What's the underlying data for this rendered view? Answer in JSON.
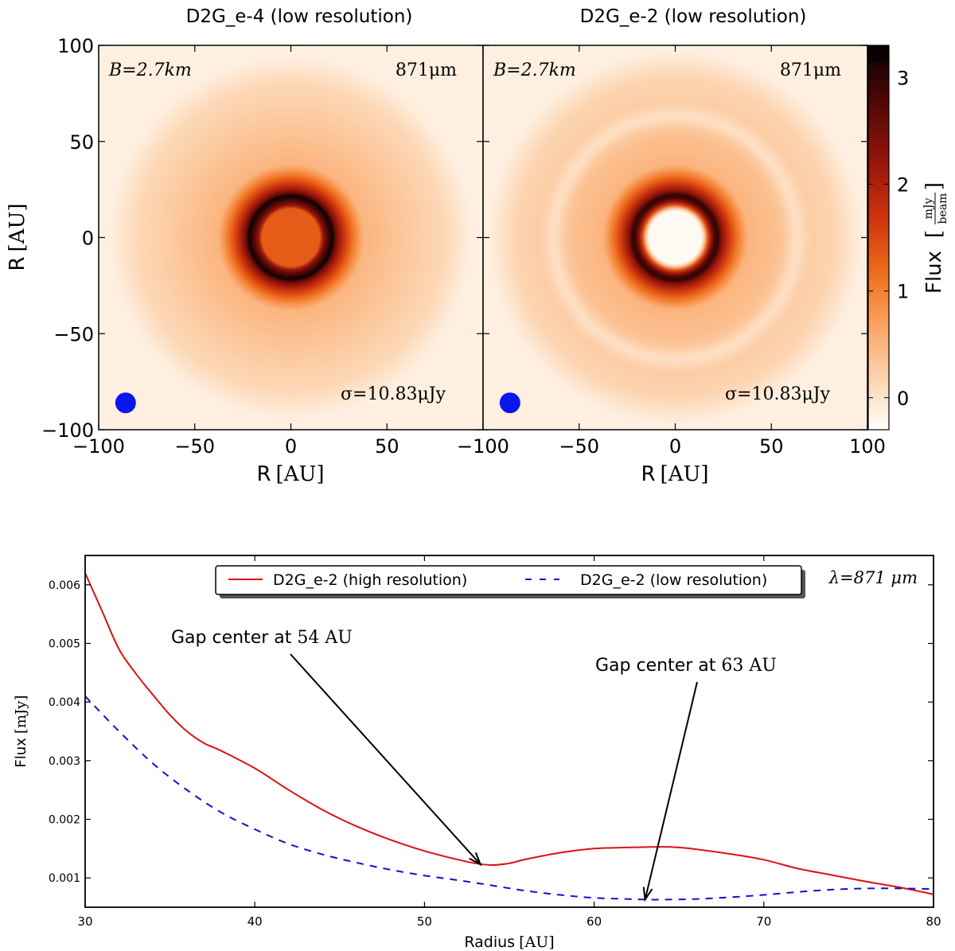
{
  "chart_data": [
    {
      "type": "heatmap",
      "title": "D2G_e-4 (low resolution)",
      "xlabel_prefix": "R",
      "xlabel_unit": "[AU]",
      "ylabel_prefix": "R",
      "ylabel_unit": "[AU]",
      "xlim": [
        -100,
        100
      ],
      "ylim": [
        -100,
        100
      ],
      "xticks": [
        -100,
        -50,
        0,
        50
      ],
      "xtick_labels": [
        "−100",
        "−50",
        "0",
        "50"
      ],
      "yticks": [
        100,
        50,
        0,
        -50,
        -100
      ],
      "ytick_labels": [
        "100",
        "50",
        "0",
        "−50",
        "−100"
      ],
      "annotations": {
        "baseline": "B=2.7km",
        "wavelength": "871μm",
        "noise": "σ=10.83μJy"
      },
      "beam": {
        "x": -86,
        "y": -86
      },
      "ring": {
        "inner_radius": 15,
        "peak_radius": 22,
        "outer_radius": 38,
        "center_level": 0.45,
        "halo_extent": 80,
        "halo_level": 0.12
      },
      "gap": null
    },
    {
      "type": "heatmap",
      "title": "D2G_e-2 (low resolution)",
      "xlabel_prefix": "R",
      "xlabel_unit": "[AU]",
      "xlim": [
        -100,
        100
      ],
      "ylim": [
        -100,
        100
      ],
      "xticks": [
        -100,
        -50,
        0,
        50,
        100
      ],
      "xtick_labels": [
        "−100",
        "−50",
        "0",
        "50",
        "100"
      ],
      "annotations": {
        "baseline": "B=2.7km",
        "wavelength": "871μm",
        "noise": "σ=10.83μJy"
      },
      "beam": {
        "x": -86,
        "y": -86
      },
      "ring": {
        "inner_radius": 15,
        "peak_radius": 22,
        "outer_radius": 38,
        "center_level": 0.02,
        "halo_extent": 83,
        "halo_level": 0.13
      },
      "gap": {
        "radius": 63,
        "width": 5
      }
    },
    {
      "type": "colorbar",
      "label_prefix": "Flux",
      "label_num": "mJy",
      "label_den": "beam",
      "ticks": [
        0,
        1,
        2,
        3
      ],
      "tick_labels": [
        "0",
        "1",
        "2",
        "3"
      ],
      "range": [
        -0.3,
        3.3
      ]
    },
    {
      "type": "line",
      "xlabel_prefix": "Radius",
      "xlabel_unit": "[AU]",
      "ylabel_prefix": "Flux",
      "ylabel_unit": "[mJy]",
      "xlim": [
        30,
        80
      ],
      "ylim": [
        0.0005,
        0.0065
      ],
      "xticks": [
        30,
        40,
        50,
        60,
        70,
        80
      ],
      "xtick_labels": [
        "30",
        "40",
        "50",
        "60",
        "70",
        "80"
      ],
      "yticks": [
        0.001,
        0.002,
        0.003,
        0.004,
        0.005,
        0.006
      ],
      "ytick_labels": [
        "0.001",
        "0.002",
        "0.003",
        "0.004",
        "0.005",
        "0.006"
      ],
      "series": [
        {
          "name": "D2G_e-2 (high resolution)",
          "color": "#dd1111",
          "style": "solid",
          "x": [
            30,
            31,
            32,
            33,
            34,
            35,
            36,
            37,
            38,
            40,
            42,
            44,
            46,
            48,
            50,
            52,
            53,
            54,
            55,
            56,
            58,
            60,
            62,
            64,
            65,
            66,
            68,
            70,
            72,
            74,
            76,
            78,
            80
          ],
          "y": [
            0.0062,
            0.00555,
            0.0049,
            0.00448,
            0.00412,
            0.00378,
            0.0035,
            0.0033,
            0.00317,
            0.00287,
            0.0025,
            0.00216,
            0.00188,
            0.00165,
            0.00146,
            0.00131,
            0.00125,
            0.00122,
            0.00125,
            0.00132,
            0.00143,
            0.0015,
            0.00152,
            0.00153,
            0.00152,
            0.00149,
            0.00141,
            0.00131,
            0.00116,
            0.00105,
            0.00094,
            0.00084,
            0.00072
          ]
        },
        {
          "name": "D2G_e-2 (low resolution)",
          "color": "#1111cc",
          "style": "dashed",
          "x": [
            30,
            32,
            34,
            36,
            38,
            40,
            42,
            44,
            46,
            48,
            50,
            52,
            54,
            56,
            58,
            60,
            62,
            63,
            64,
            66,
            68,
            70,
            72,
            74,
            76,
            78,
            80
          ],
          "y": [
            0.0041,
            0.0035,
            0.00295,
            0.0025,
            0.00212,
            0.00183,
            0.00158,
            0.0014,
            0.00126,
            0.00114,
            0.00104,
            0.00096,
            0.00087,
            0.00078,
            0.00071,
            0.00066,
            0.00064,
            0.00063,
            0.00063,
            0.00064,
            0.00067,
            0.00071,
            0.00076,
            0.0008,
            0.00082,
            0.00082,
            0.00081
          ]
        }
      ],
      "annotations": [
        {
          "text_prefix": "Gap center at",
          "value": "54",
          "unit": "AU",
          "target": [
            53.3,
            0.00123
          ]
        },
        {
          "text_prefix": "Gap center at",
          "value": "63",
          "unit": "AU",
          "target": [
            63,
            0.00063
          ]
        }
      ],
      "wavelength_label": "λ=871 μm",
      "legend_position": "top-center"
    }
  ]
}
